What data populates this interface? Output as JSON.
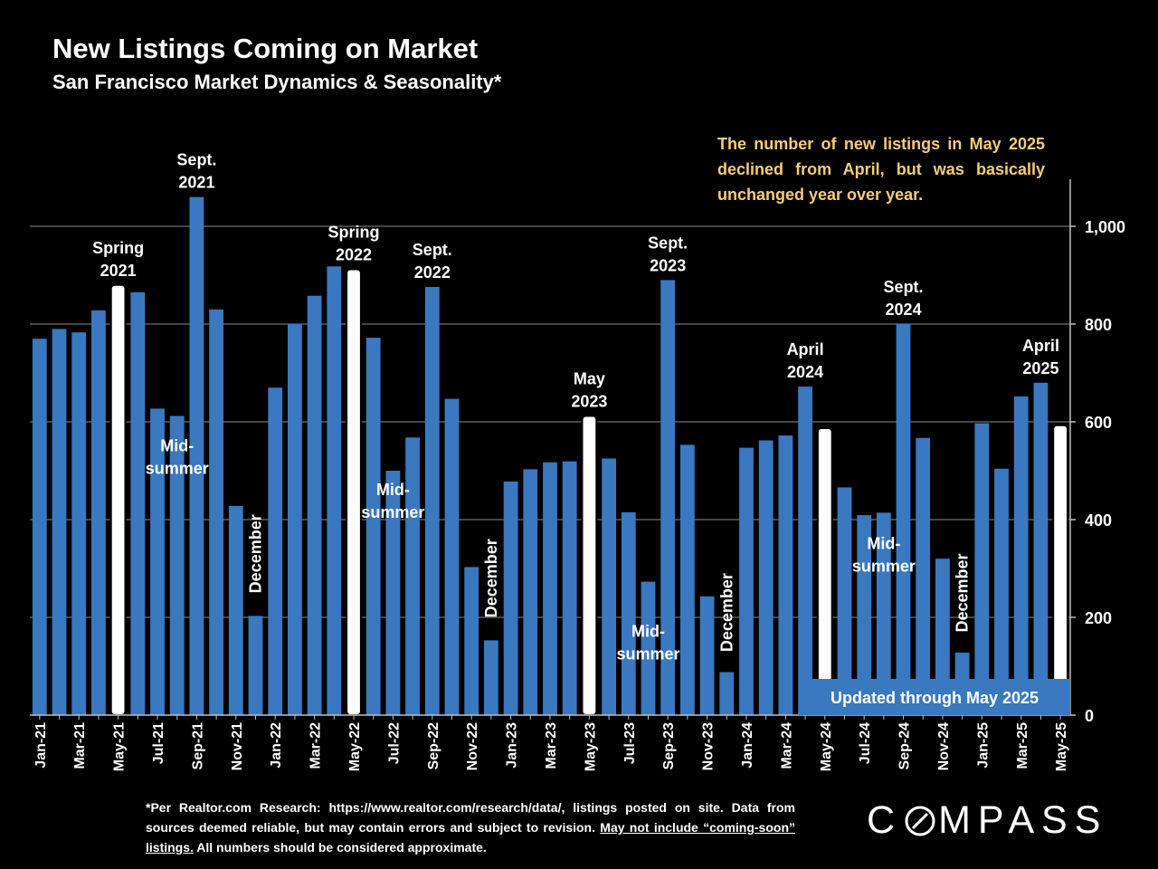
{
  "title": "New Listings Coming on Market",
  "subtitle": "San Francisco Market Dynamics & Seasonality*",
  "callout": "The number of new listings in May 2025 declined from April, but was basically unchanged year over year.",
  "footnote": {
    "part1": "*Per Realtor.com Research:  https://www.realtor.com/research/data/, listings posted on site. Data from sources deemed reliable, but may contain errors and subject to revision. ",
    "underlined": "May not include “coming-soon” listings.",
    "part2": " All numbers should be considered approximate."
  },
  "logo": {
    "part1": "C",
    "part2": "MPASS"
  },
  "updated_label": "Updated through May 2025",
  "colors": {
    "bar": "#3a78c0",
    "highlight": "#ffffff",
    "callout": "#f5cd7a",
    "background": "#000000"
  },
  "chart_data": {
    "type": "bar",
    "ylim": [
      0,
      1100
    ],
    "yticks": [
      0,
      200,
      400,
      600,
      800,
      1000
    ],
    "ytick_labels": [
      "0",
      "200",
      "400",
      "600",
      "800",
      "1,000"
    ],
    "categories": [
      "Jan-21",
      "Feb-21",
      "Mar-21",
      "Apr-21",
      "May-21",
      "Jun-21",
      "Jul-21",
      "Aug-21",
      "Sep-21",
      "Oct-21",
      "Nov-21",
      "Dec-21",
      "Jan-22",
      "Feb-22",
      "Mar-22",
      "Apr-22",
      "May-22",
      "Jun-22",
      "Jul-22",
      "Aug-22",
      "Sep-22",
      "Oct-22",
      "Nov-22",
      "Dec-22",
      "Jan-23",
      "Feb-23",
      "Mar-23",
      "Apr-23",
      "May-23",
      "Jun-23",
      "Jul-23",
      "Aug-23",
      "Sep-23",
      "Oct-23",
      "Nov-23",
      "Dec-23",
      "Jan-24",
      "Feb-24",
      "Mar-24",
      "Apr-24",
      "May-24",
      "Jun-24",
      "Jul-24",
      "Aug-24",
      "Sep-24",
      "Oct-24",
      "Nov-24",
      "Dec-24",
      "Jan-25",
      "Feb-25",
      "Mar-25",
      "Apr-25",
      "May-25"
    ],
    "xtick_labels": [
      "Jan-21",
      "",
      "Mar-21",
      "",
      "May-21",
      "",
      "Jul-21",
      "",
      "Sep-21",
      "",
      "Nov-21",
      "",
      "Jan-22",
      "",
      "Mar-22",
      "",
      "May-22",
      "",
      "Jul-22",
      "",
      "Sep-22",
      "",
      "Nov-22",
      "",
      "Jan-23",
      "",
      "Mar-23",
      "",
      "May-23",
      "",
      "Jul-23",
      "",
      "Sep-23",
      "",
      "Nov-23",
      "",
      "Jan-24",
      "",
      "Mar-24",
      "",
      "May-24",
      "",
      "Jul-24",
      "",
      "Sep-24",
      "",
      "Nov-24",
      "",
      "Jan-25",
      "",
      "Mar-25",
      "",
      "May-25"
    ],
    "values": [
      770,
      790,
      783,
      828,
      880,
      865,
      627,
      612,
      1060,
      830,
      428,
      203,
      670,
      800,
      858,
      918,
      912,
      772,
      500,
      568,
      876,
      647,
      303,
      153,
      478,
      503,
      517,
      519,
      612,
      525,
      415,
      273,
      890,
      553,
      243,
      88,
      547,
      562,
      572,
      672,
      587,
      466,
      409,
      414,
      800,
      567,
      320,
      128,
      597,
      504,
      652,
      680,
      593
    ],
    "highlighted": [
      "May-21",
      "May-22",
      "May-23",
      "May-24",
      "May-25"
    ],
    "annotations": [
      {
        "category": "May-21",
        "lines": [
          "Spring",
          "2021"
        ]
      },
      {
        "category": "Sep-21",
        "lines": [
          "Sept.",
          "2021"
        ]
      },
      {
        "category": "May-22",
        "lines": [
          "Spring",
          "2022"
        ]
      },
      {
        "category": "Sep-22",
        "lines": [
          "Sept.",
          "2022"
        ]
      },
      {
        "category": "May-23",
        "lines": [
          "May",
          "2023"
        ]
      },
      {
        "category": "Sep-23",
        "lines": [
          "Sept.",
          "2023"
        ]
      },
      {
        "category": "Apr-24",
        "lines": [
          "April",
          "2024"
        ]
      },
      {
        "category": "Sep-24",
        "lines": [
          "Sept.",
          "2024"
        ]
      },
      {
        "category": "Apr-25",
        "lines": [
          "April",
          "2025"
        ]
      }
    ],
    "inner_labels": [
      {
        "category": "Aug-21",
        "lines": [
          "Mid-",
          "summer"
        ],
        "value": 540
      },
      {
        "category": "Dec-21",
        "lines": [
          "December"
        ],
        "value": 330,
        "rotate": true
      },
      {
        "category": "Jul-22",
        "lines": [
          "Mid-",
          "summer"
        ],
        "value": 450
      },
      {
        "category": "Dec-22",
        "lines": [
          "December"
        ],
        "value": 280,
        "rotate": true
      },
      {
        "category": "Aug-23",
        "lines": [
          "Mid-",
          "summer"
        ],
        "value": 160
      },
      {
        "category": "Dec-23",
        "lines": [
          "December"
        ],
        "value": 210,
        "rotate": true
      },
      {
        "category": "Aug-24",
        "lines": [
          "Mid-",
          "summer"
        ],
        "value": 340
      },
      {
        "category": "Dec-24",
        "lines": [
          "December"
        ],
        "value": 250,
        "rotate": true
      }
    ]
  }
}
